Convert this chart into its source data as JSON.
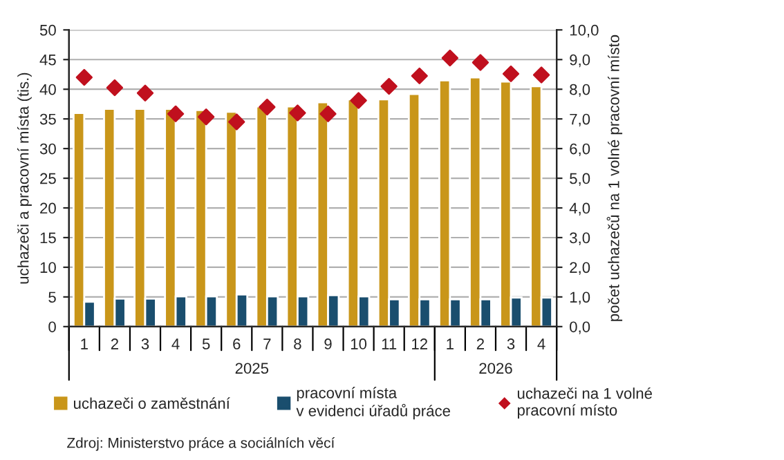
{
  "chart_data": {
    "type": "bar",
    "ylabel": "uchazeči a pracovní místa (tis.)",
    "y2label": "počet uchazečů na 1 volné pracovní místo",
    "categories": [
      "1",
      "2",
      "3",
      "4",
      "5",
      "6",
      "7",
      "8",
      "9",
      "10",
      "11",
      "12",
      "1",
      "2",
      "3",
      "4"
    ],
    "series": [
      {
        "name": "uchazeči o zaměstnání",
        "color": "#c9961a",
        "values": [
          36.0,
          36.7,
          36.7,
          36.7,
          36.5,
          36.2,
          37.1,
          37.1,
          37.8,
          38.3,
          38.3,
          39.2,
          41.5,
          42.0,
          41.3,
          40.5
        ]
      },
      {
        "name": "pracovní místa\nv evidenci úřadů práce",
        "color": "#1a4e6e",
        "values": [
          4.2,
          4.7,
          4.7,
          5.1,
          5.1,
          5.4,
          5.1,
          5.1,
          5.3,
          5.1,
          4.6,
          4.6,
          4.6,
          4.6,
          4.9,
          4.9
        ]
      },
      {
        "name": "uchazeči na 1 volné\npracovní místo",
        "type": "scatter",
        "axis": "y2",
        "marker": "diamond",
        "color": "#c0101e",
        "values": [
          8.4,
          8.05,
          7.87,
          7.17,
          7.07,
          6.9,
          7.4,
          7.2,
          7.17,
          7.62,
          8.1,
          8.45,
          9.05,
          8.9,
          8.52,
          8.48
        ]
      }
    ],
    "ylim": [
      0,
      50
    ],
    "yticks": [
      0,
      5,
      10,
      15,
      20,
      25,
      30,
      35,
      40,
      45,
      50
    ],
    "y2lim": [
      0,
      10
    ],
    "y2ticks": [
      {
        "value": 0,
        "label": "0,0"
      },
      {
        "value": 1,
        "label": "1,0"
      },
      {
        "value": 2,
        "label": "2,0"
      },
      {
        "value": 3,
        "label": "3,0"
      },
      {
        "value": 4,
        "label": "4,0"
      },
      {
        "value": 5,
        "label": "5,0"
      },
      {
        "value": 6,
        "label": "6,0"
      },
      {
        "value": 7,
        "label": "7,0"
      },
      {
        "value": 8,
        "label": "8,0"
      },
      {
        "value": 9,
        "label": "9,0"
      },
      {
        "value": 10,
        "label": "10,0"
      }
    ],
    "grid": "y",
    "legend": "bottom",
    "annotations": [
      "2025",
      "2026",
      "Zdroj: Ministerstvo práce a sociálních věcí"
    ]
  }
}
